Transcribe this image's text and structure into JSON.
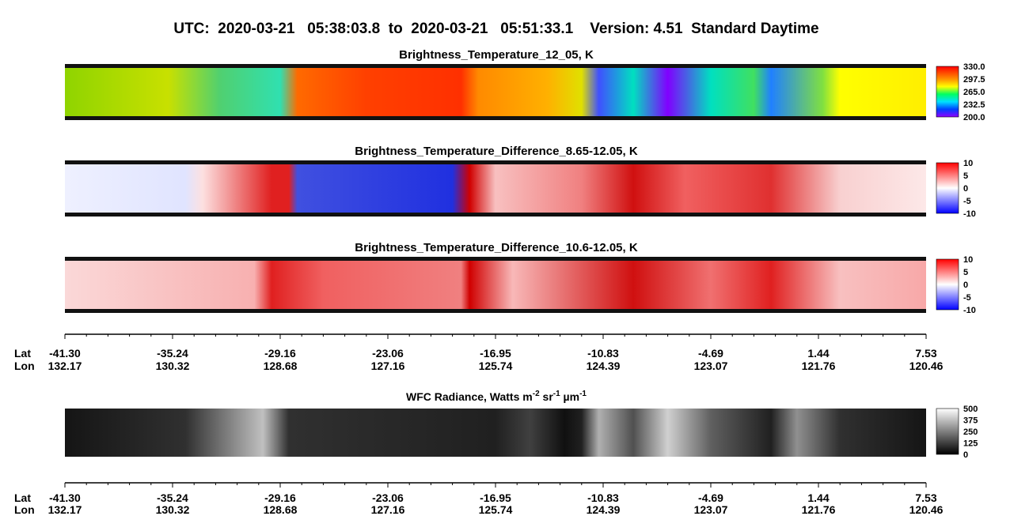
{
  "title": "UTC:  2020-03-21   05:38:03.8  to  2020-03-21   05:51:33.1    Version: 4.51  Standard Daytime",
  "panels": [
    {
      "title": "Brightness_Temperature_12_05, K",
      "colorbar": [
        "330.0",
        "297.5",
        "265.0",
        "232.5",
        "200.0"
      ]
    },
    {
      "title": "Brightness_Temperature_Difference_8.65-12.05, K",
      "colorbar": [
        "10",
        "5",
        "0",
        "-5",
        "-10"
      ]
    },
    {
      "title": "Brightness_Temperature_Difference_10.6-12.05, K",
      "colorbar": [
        "10",
        "5",
        "0",
        "-5",
        "-10"
      ]
    }
  ],
  "axis": {
    "lat_label": "Lat",
    "lon_label": "Lon",
    "lat": [
      "-41.30",
      "-35.24",
      "-29.16",
      "-23.06",
      "-16.95",
      "-10.83",
      "-4.69",
      "1.44",
      "7.53"
    ],
    "lon": [
      "132.17",
      "130.32",
      "128.68",
      "127.16",
      "125.74",
      "124.39",
      "123.07",
      "121.76",
      "120.46"
    ]
  },
  "wfc": {
    "title": [
      "WFC Radiance, Watts m",
      "-2",
      " sr",
      "-1",
      " µm",
      "-1"
    ],
    "colorbar": [
      "500",
      "375",
      "250",
      "125",
      "0"
    ]
  }
}
